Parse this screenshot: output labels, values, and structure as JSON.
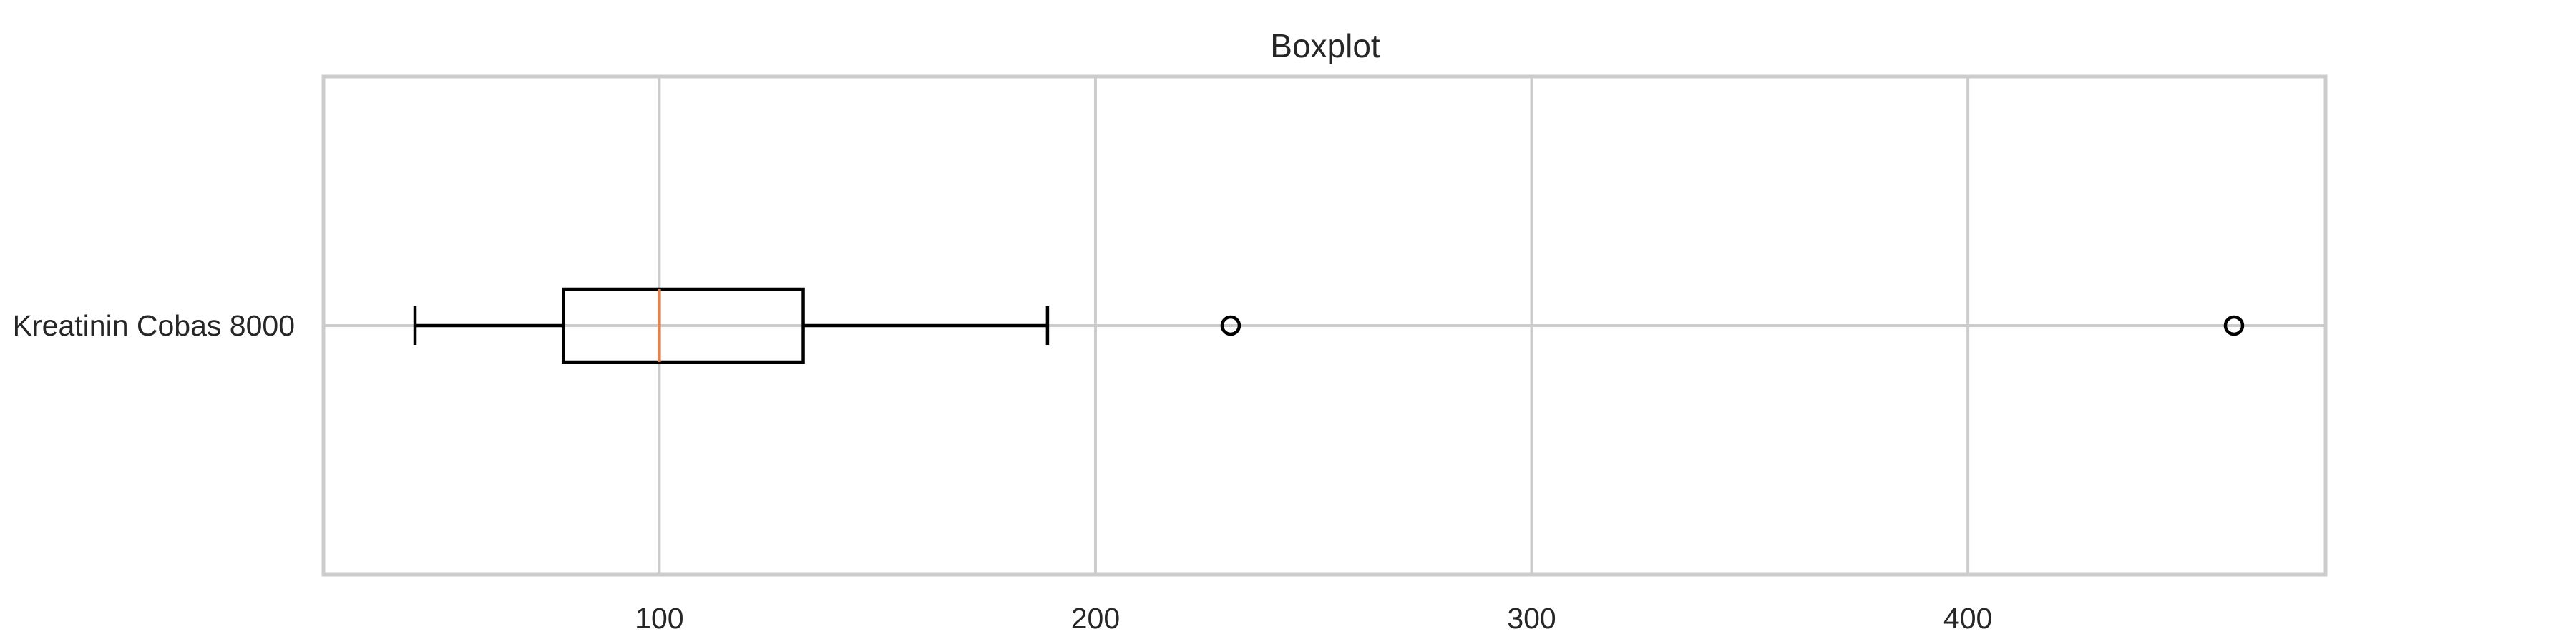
{
  "chart_data": {
    "type": "boxplot",
    "orientation": "horizontal",
    "title": "Boxplot",
    "xlabel": "",
    "ylabel": "",
    "xlim": [
      23,
      482
    ],
    "xticks": [
      100,
      200,
      300,
      400
    ],
    "xtick_labels": [
      "100",
      "200",
      "300",
      "400"
    ],
    "grid": true,
    "legend": "none",
    "series": [
      {
        "label": "Kreatinin Cobas 8000",
        "whisker_low": 44,
        "q1": 78,
        "median": 100,
        "q3": 133,
        "whisker_high": 189,
        "outliers": [
          231,
          461
        ]
      }
    ],
    "colors": {
      "box": "#000000",
      "median": "#dd8452",
      "grid": "#cccccc",
      "frame": "#cccccc",
      "text": "#262626"
    }
  }
}
